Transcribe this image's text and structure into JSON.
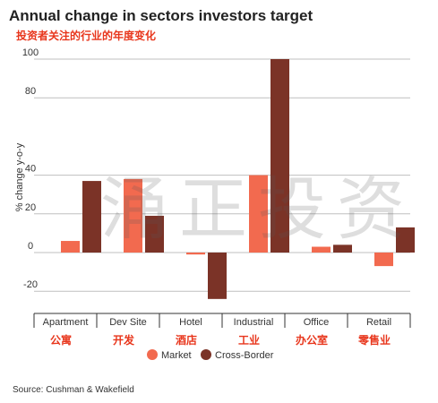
{
  "title": "Annual change in sectors investors target",
  "subtitle": "投资者关注的行业的年度变化",
  "source": "Source: Cushman & Wakefield",
  "watermark": "涌正投资",
  "colors": {
    "market": "#f26a4f",
    "cross_border": "#7b3327",
    "subtitle": "#e8361c"
  },
  "chart_data": {
    "type": "bar",
    "categories": [
      "Apartment",
      "Dev Site",
      "Hotel",
      "Industrial",
      "Office",
      "Retail"
    ],
    "categories_cn": [
      "公寓",
      "开发",
      "酒店",
      "工业",
      "办公室",
      "零售业"
    ],
    "series": [
      {
        "name": "Market",
        "values": [
          6,
          38,
          -1,
          40,
          3,
          -7
        ]
      },
      {
        "name": "Cross-Border",
        "values": [
          37,
          19,
          -24,
          100,
          4,
          13
        ]
      }
    ],
    "ylabel": "% change y-o-y",
    "ylim": [
      -30,
      100
    ],
    "yticks": [
      -20,
      0,
      20,
      40,
      80,
      100
    ],
    "grid": true,
    "legend_position": "bottom"
  }
}
